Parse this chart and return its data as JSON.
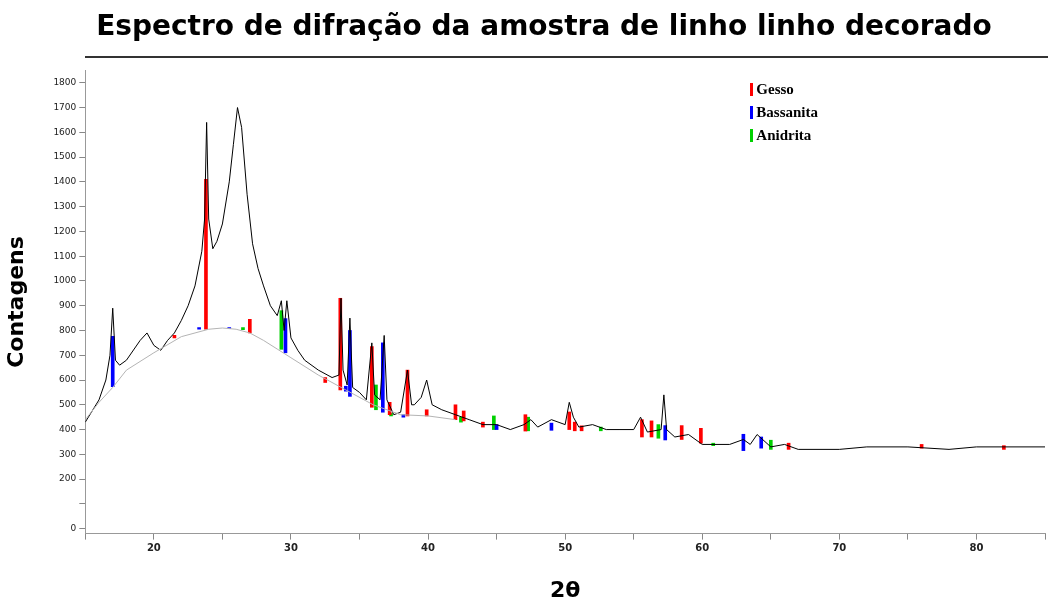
{
  "chart_data": {
    "type": "line",
    "title": "Espectro de difração da amostra de linho linho decorado",
    "xlabel": "2θ",
    "ylabel": "Contagens",
    "xlim": [
      15,
      85
    ],
    "ylim": [
      -20,
      1850
    ],
    "xticks": [
      {
        "value": 15,
        "label": null
      },
      20,
      {
        "value": 25,
        "label": null
      },
      30,
      {
        "value": 35,
        "label": null
      },
      40,
      {
        "value": 45,
        "label": null
      },
      50,
      {
        "value": 55,
        "label": null
      },
      60,
      {
        "value": 65,
        "label": null
      },
      70,
      {
        "value": 75,
        "label": null
      },
      80,
      {
        "value": 85,
        "label": null
      }
    ],
    "yticks": [
      0,
      {
        "value": 100,
        "label": null
      },
      200,
      300,
      400,
      500,
      600,
      700,
      800,
      900,
      1000,
      1100,
      1200,
      1300,
      1400,
      1500,
      1600,
      1700,
      1800
    ],
    "grid": false,
    "legend": "top right",
    "marker": "none",
    "line_style": "solid",
    "series": [
      {
        "color": "#b4b4b4",
        "x": [
          15,
          16,
          17,
          18,
          20,
          22,
          24,
          25,
          26,
          27,
          28,
          29,
          30,
          32,
          34,
          36,
          38,
          40,
          42
        ],
        "values": [
          440,
          510,
          570,
          640,
          710,
          775,
          805,
          810,
          805,
          790,
          760,
          725,
          690,
          620,
          560,
          500,
          460,
          455,
          440
        ]
      },
      {
        "color": "#000000",
        "x": [
          15,
          16,
          16.5,
          16.8,
          17,
          17.2,
          17.5,
          18,
          19,
          19.5,
          20,
          20.5,
          21,
          21.5,
          22,
          22.5,
          23,
          23.5,
          23.7,
          23.85,
          24,
          24.3,
          24.6,
          25,
          25.5,
          25.8,
          26.1,
          26.4,
          26.8,
          27.2,
          27.6,
          28,
          28.5,
          29,
          29.3,
          29.5,
          29.7,
          30,
          30.5,
          31,
          32,
          33,
          33.5,
          33.65,
          33.8,
          34.1,
          34.3,
          34.5,
          35,
          35.5,
          35.9,
          36.1,
          36.5,
          36.8,
          37,
          37.5,
          38,
          38.5,
          38.8,
          39,
          39.5,
          39.9,
          40.3,
          41,
          42,
          43,
          44,
          45,
          46,
          47,
          47.5,
          48,
          49,
          50,
          50.3,
          50.6,
          51,
          52,
          53,
          54,
          55,
          55.5,
          56,
          57,
          57.2,
          57.4,
          58,
          59,
          60,
          62,
          63,
          63.5,
          64,
          65,
          66,
          67,
          70,
          72,
          75,
          78,
          80,
          82,
          85
        ],
        "values": [
          430,
          520,
          600,
          700,
          890,
          680,
          660,
          680,
          760,
          790,
          740,
          720,
          760,
          790,
          840,
          900,
          980,
          1120,
          1250,
          1640,
          1250,
          1130,
          1160,
          1230,
          1400,
          1550,
          1700,
          1620,
          1350,
          1150,
          1050,
          980,
          900,
          860,
          920,
          800,
          920,
          770,
          720,
          680,
          640,
          610,
          620,
          930,
          640,
          580,
          850,
          570,
          550,
          520,
          750,
          540,
          520,
          780,
          520,
          460,
          470,
          640,
          500,
          500,
          530,
          600,
          500,
          480,
          460,
          440,
          420,
          420,
          400,
          420,
          440,
          410,
          440,
          420,
          510,
          450,
          410,
          420,
          400,
          400,
          400,
          450,
          390,
          400,
          540,
          400,
          370,
          380,
          340,
          340,
          360,
          340,
          380,
          330,
          340,
          320,
          320,
          330,
          330,
          320,
          330,
          330,
          330
        ]
      },
      {
        "type": "bar",
        "name": "Gesso",
        "color": "#ff0000",
        "x": [
          21.5,
          23.8,
          27.0,
          32.5,
          33.6,
          35.9,
          37.2,
          38.5,
          39.9,
          42.0,
          42.6,
          44.0,
          47.1,
          50.3,
          50.7,
          51.2,
          55.6,
          56.3,
          58.5,
          59.9,
          66.3,
          76.0,
          82.0
        ],
        "base": [
          770,
          805,
          790,
          590,
          560,
          490,
          460,
          455,
          455,
          440,
          435,
          410,
          394,
          400,
          395,
          395,
          370,
          370,
          360,
          345,
          320,
          325,
          320
        ],
        "values": [
          10,
          605,
          55,
          20,
          370,
          245,
          50,
          185,
          25,
          60,
          40,
          20,
          66,
          71,
          35,
          20,
          70,
          65,
          56,
          60,
          25,
          15,
          15
        ]
      },
      {
        "type": "bar",
        "name": "Bassanita",
        "color": "#0000ff",
        "x": [
          17.0,
          23.3,
          25.5,
          29.6,
          34.0,
          34.3,
          36.7,
          38.2,
          45.0,
          49.0,
          57.3,
          63.0,
          64.3
        ],
        "base": [
          573,
          805,
          808,
          710,
          555,
          534,
          470,
          450,
          400,
          397,
          358,
          315,
          325
        ],
        "values": [
          203,
          7,
          4,
          138,
          20,
          266,
          280,
          10,
          20,
          29,
          58,
          66,
          45
        ]
      },
      {
        "type": "bar",
        "name": "Anidrita",
        "color": "#00d000",
        "x": [
          26.5,
          29.3,
          36.2,
          37.3,
          42.4,
          44.8,
          47.3,
          52.6,
          56.8,
          60.8,
          65.0
        ],
        "base": [
          803,
          724,
          480,
          455,
          430,
          400,
          395,
          395,
          365,
          335,
          320
        ],
        "values": [
          9,
          156,
          100,
          10,
          20,
          55,
          55,
          15,
          55,
          10,
          37
        ]
      }
    ]
  }
}
